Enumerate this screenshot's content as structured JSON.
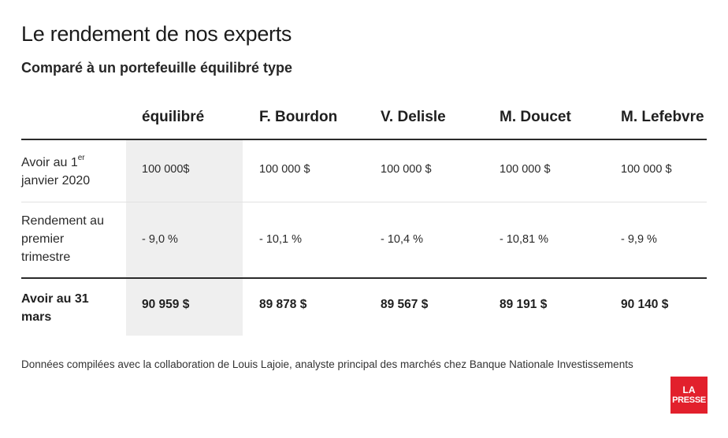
{
  "title": "Le rendement de nos experts",
  "subtitle": "Comparé à un portefeuille équilibré type",
  "columns": [
    "équilibré",
    "F. Bourdon",
    "V. Delisle",
    "M. Doucet",
    "M. Lefebvre"
  ],
  "rows": [
    {
      "label_main": "Avoir au 1",
      "label_sup": "er",
      "label_rest": "janvier 2020",
      "values": [
        "100 000$",
        "100 000 $",
        "100 000 $",
        "100 000 $",
        "100 000 $"
      ]
    },
    {
      "label_line1": "Rendement au",
      "label_line2": "premier",
      "label_line3": "trimestre",
      "values": [
        "- 9,0 %",
        "- 10,1 %",
        "- 10,4 %",
        "- 10,81 %",
        "- 9,9 %"
      ]
    },
    {
      "label_line1": "Avoir au 31",
      "label_line2": "mars",
      "values": [
        "90 959 $",
        "89 878 $",
        "89 567 $",
        "89 191 $",
        "90 140 $"
      ]
    }
  ],
  "footnote": "Données compilées avec la collaboration de Louis Lajoie, analyste principal des marchés chez Banque Nationale Investissements",
  "logo": {
    "line1": "LA",
    "line2": "PRESSE",
    "color": "#e2202c"
  },
  "colors": {
    "highlight_column": "#efefef",
    "rule": "#2a2a2a"
  }
}
